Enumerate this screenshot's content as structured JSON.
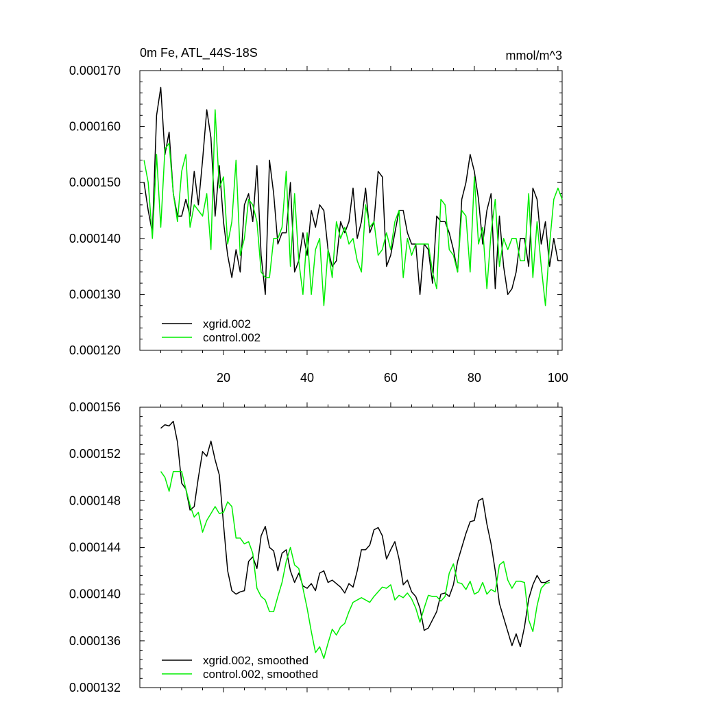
{
  "chart_data": [
    {
      "type": "line",
      "title": "0m Fe, ATL_44S-18S",
      "units": "mmol/m^3",
      "xlim": [
        0,
        101
      ],
      "ylim": [
        0.00012,
        0.00017
      ],
      "xticks": [
        20,
        40,
        60,
        80,
        100
      ],
      "xtick_labels": [
        "20",
        "40",
        "60",
        "80",
        "100"
      ],
      "yticks": [
        0.00012,
        0.00013,
        0.00014,
        0.00015,
        0.00016,
        0.00017
      ],
      "ytick_labels": [
        "0.000120",
        "0.000130",
        "0.000140",
        "0.000150",
        "0.000160",
        "0.000170"
      ],
      "legend_position": "bottom-left",
      "series": [
        {
          "name": "xgrid.002",
          "color": "#000000",
          "x": [
            1,
            2,
            3,
            4,
            5,
            6,
            7,
            8,
            9,
            10,
            11,
            12,
            13,
            14,
            15,
            16,
            17,
            18,
            19,
            20,
            21,
            22,
            23,
            24,
            25,
            26,
            27,
            28,
            29,
            30,
            31,
            32,
            33,
            34,
            35,
            36,
            37,
            38,
            39,
            40,
            41,
            42,
            43,
            44,
            45,
            46,
            47,
            48,
            49,
            50,
            51,
            52,
            53,
            54,
            55,
            56,
            57,
            58,
            59,
            60,
            61,
            62,
            63,
            64,
            65,
            66,
            67,
            68,
            69,
            70,
            71,
            72,
            73,
            74,
            75,
            76,
            77,
            78,
            79,
            80,
            81,
            82,
            83,
            84,
            85,
            86,
            87,
            88,
            89,
            90,
            91,
            92,
            93,
            94,
            95,
            96,
            97,
            98,
            99,
            100,
            101
          ],
          "values": [
            0.00015,
            0.000145,
            0.000141,
            0.000162,
            0.000167,
            0.000155,
            0.000159,
            0.000148,
            0.000144,
            0.000144,
            0.000147,
            0.000144,
            0.000152,
            0.000146,
            0.000154,
            0.000163,
            0.000158,
            0.000144,
            0.000153,
            0.000143,
            0.000137,
            0.000133,
            0.000138,
            0.000134,
            0.000146,
            0.000148,
            0.000143,
            0.000153,
            0.000137,
            0.00013,
            0.000154,
            0.000148,
            0.000139,
            0.000141,
            0.000141,
            0.00015,
            0.000134,
            0.000136,
            0.000141,
            0.000137,
            0.000145,
            0.000142,
            0.000146,
            0.000145,
            0.000138,
            0.000135,
            0.000136,
            0.000143,
            0.000141,
            0.000143,
            0.000149,
            0.00014,
            0.000143,
            0.000149,
            0.000141,
            0.000143,
            0.000152,
            0.000151,
            0.000135,
            0.000137,
            0.000141,
            0.000145,
            0.000145,
            0.000141,
            0.000139,
            0.000139,
            0.00013,
            0.000139,
            0.000138,
            0.000132,
            0.000144,
            0.000143,
            0.000143,
            0.000141,
            0.000138,
            0.000134,
            0.000147,
            0.00015,
            0.000155,
            0.000152,
            0.000147,
            0.000139,
            0.000145,
            0.000148,
            0.000131,
            0.000144,
            0.000135,
            0.00013,
            0.000131,
            0.000134,
            0.00014,
            0.00014,
            0.000135,
            0.000149,
            0.000147,
            0.000139,
            0.000143,
            0.000135,
            0.00014,
            0.000136,
            0.000136
          ]
        },
        {
          "name": "control.002",
          "color": "#00ee00",
          "x": [
            1,
            2,
            3,
            4,
            5,
            6,
            7,
            8,
            9,
            10,
            11,
            12,
            13,
            14,
            15,
            16,
            17,
            18,
            19,
            20,
            21,
            22,
            23,
            24,
            25,
            26,
            27,
            28,
            29,
            30,
            31,
            32,
            33,
            34,
            35,
            36,
            37,
            38,
            39,
            40,
            41,
            42,
            43,
            44,
            45,
            46,
            47,
            48,
            49,
            50,
            51,
            52,
            53,
            54,
            55,
            56,
            57,
            58,
            59,
            60,
            61,
            62,
            63,
            64,
            65,
            66,
            67,
            68,
            69,
            70,
            71,
            72,
            73,
            74,
            75,
            76,
            77,
            78,
            79,
            80,
            81,
            82,
            83,
            84,
            85,
            86,
            87,
            88,
            89,
            90,
            91,
            92,
            93,
            94,
            95,
            96,
            97,
            98,
            99,
            100,
            101
          ],
          "values": [
            0.000154,
            0.00015,
            0.00014,
            0.000155,
            0.000142,
            0.000156,
            0.000157,
            0.000148,
            0.000143,
            0.000152,
            0.000155,
            0.000142,
            0.000146,
            0.000145,
            0.000144,
            0.000148,
            0.000138,
            0.000163,
            0.000149,
            0.000151,
            0.000139,
            0.000143,
            0.000154,
            0.000137,
            0.00014,
            0.000147,
            0.000146,
            0.000143,
            0.000134,
            0.000133,
            0.000133,
            0.00014,
            0.00014,
            0.000142,
            0.000152,
            0.000135,
            0.000148,
            0.000136,
            0.00013,
            0.000141,
            0.00013,
            0.000138,
            0.00014,
            0.000128,
            0.000138,
            0.000133,
            0.000143,
            0.00014,
            0.000142,
            0.000139,
            0.00014,
            0.000136,
            0.000134,
            0.000146,
            0.000142,
            0.000143,
            0.000137,
            0.000138,
            0.000141,
            0.000138,
            0.000143,
            0.000145,
            0.000133,
            0.00014,
            0.000137,
            0.000139,
            0.000139,
            0.000139,
            0.000139,
            0.000134,
            0.000131,
            0.000147,
            0.000146,
            0.000138,
            0.000137,
            0.000134,
            0.000145,
            0.000144,
            0.000134,
            0.000151,
            0.000139,
            0.000142,
            0.000131,
            0.000141,
            0.000147,
            0.000135,
            0.00014,
            0.000138,
            0.00014,
            0.00014,
            0.000136,
            0.000136,
            0.000148,
            0.000133,
            0.000143,
            0.000135,
            0.000128,
            0.000139,
            0.000147,
            0.000149,
            0.000147
          ]
        }
      ]
    },
    {
      "type": "line",
      "title": "",
      "xlim": [
        0,
        101
      ],
      "ylim": [
        0.000132,
        0.000156
      ],
      "xticks": [
        20,
        40,
        60,
        80,
        100
      ],
      "xtick_labels": [],
      "yticks": [
        0.000132,
        0.000136,
        0.00014,
        0.000144,
        0.000148,
        0.000152,
        0.000156
      ],
      "ytick_labels": [
        "0.000132",
        "0.000136",
        "0.000140",
        "0.000144",
        "0.000148",
        "0.000152",
        "0.000156"
      ],
      "legend_position": "bottom-left",
      "series": [
        {
          "name": "xgrid.002, smoothed",
          "color": "#000000",
          "x": [
            5,
            6,
            7,
            8,
            9,
            10,
            11,
            12,
            13,
            14,
            15,
            16,
            17,
            18,
            19,
            20,
            21,
            22,
            23,
            24,
            25,
            26,
            27,
            28,
            29,
            30,
            31,
            32,
            33,
            34,
            35,
            36,
            37,
            38,
            39,
            40,
            41,
            42,
            43,
            44,
            45,
            46,
            47,
            48,
            49,
            50,
            51,
            52,
            53,
            54,
            55,
            56,
            57,
            58,
            59,
            60,
            61,
            62,
            63,
            64,
            65,
            66,
            67,
            68,
            69,
            70,
            71,
            72,
            73,
            74,
            75,
            76,
            77,
            78,
            79,
            80,
            81,
            82,
            83,
            84,
            85,
            86,
            87,
            88,
            89,
            90,
            91,
            92,
            93,
            94,
            95,
            96,
            97,
            98
          ],
          "values": [
            0.0001542,
            0.0001545,
            0.0001544,
            0.0001548,
            0.000153,
            0.0001495,
            0.000149,
            0.0001472,
            0.0001475,
            0.00015,
            0.0001522,
            0.0001518,
            0.0001531,
            0.0001515,
            0.0001502,
            0.000146,
            0.000142,
            0.0001403,
            0.00014,
            0.0001402,
            0.0001403,
            0.0001428,
            0.0001432,
            0.0001422,
            0.000145,
            0.0001458,
            0.000144,
            0.0001437,
            0.000142,
            0.0001435,
            0.0001438,
            0.000142,
            0.000141,
            0.0001418,
            0.0001407,
            0.0001405,
            0.0001409,
            0.0001403,
            0.0001418,
            0.000142,
            0.000141,
            0.0001412,
            0.0001409,
            0.0001406,
            0.0001401,
            0.0001409,
            0.0001406,
            0.000142,
            0.0001438,
            0.0001438,
            0.0001442,
            0.0001455,
            0.0001457,
            0.000145,
            0.000143,
            0.0001438,
            0.0001445,
            0.000143,
            0.0001408,
            0.0001412,
            0.0001402,
            0.0001398,
            0.0001388,
            0.0001369,
            0.0001371,
            0.0001378,
            0.0001385,
            0.00014,
            0.0001401,
            0.0001398,
            0.0001408,
            0.0001428,
            0.000144,
            0.0001452,
            0.0001462,
            0.0001463,
            0.000148,
            0.0001482,
            0.000146,
            0.0001443,
            0.000142,
            0.0001392,
            0.000138,
            0.0001368,
            0.0001356,
            0.0001366,
            0.0001355,
            0.0001372,
            0.0001396,
            0.0001408,
            0.0001416,
            0.000141,
            0.000141,
            0.0001412
          ]
        },
        {
          "name": "control.002, smoothed",
          "color": "#00ee00",
          "x": [
            5,
            6,
            7,
            8,
            9,
            10,
            11,
            12,
            13,
            14,
            15,
            16,
            17,
            18,
            19,
            20,
            21,
            22,
            23,
            24,
            25,
            26,
            27,
            28,
            29,
            30,
            31,
            32,
            33,
            34,
            35,
            36,
            37,
            38,
            39,
            40,
            41,
            42,
            43,
            44,
            45,
            46,
            47,
            48,
            49,
            50,
            51,
            52,
            53,
            54,
            55,
            56,
            57,
            58,
            59,
            60,
            61,
            62,
            63,
            64,
            65,
            66,
            67,
            68,
            69,
            70,
            71,
            72,
            73,
            74,
            75,
            76,
            77,
            78,
            79,
            80,
            81,
            82,
            83,
            84,
            85,
            86,
            87,
            88,
            89,
            90,
            91,
            92,
            93,
            94,
            95,
            96,
            97,
            98
          ],
          "values": [
            0.0001505,
            0.00015,
            0.0001488,
            0.0001505,
            0.0001505,
            0.0001505,
            0.000149,
            0.0001476,
            0.0001466,
            0.000147,
            0.0001453,
            0.0001463,
            0.0001469,
            0.0001475,
            0.0001469,
            0.000147,
            0.0001479,
            0.0001475,
            0.0001448,
            0.0001448,
            0.0001443,
            0.0001445,
            0.0001435,
            0.0001405,
            0.0001398,
            0.0001395,
            0.0001385,
            0.0001385,
            0.0001398,
            0.000141,
            0.0001428,
            0.000144,
            0.0001425,
            0.0001422,
            0.0001405,
            0.0001388,
            0.0001368,
            0.000135,
            0.0001355,
            0.0001345,
            0.0001358,
            0.000137,
            0.0001365,
            0.0001372,
            0.0001375,
            0.0001385,
            0.0001393,
            0.0001395,
            0.0001397,
            0.0001395,
            0.0001393,
            0.0001398,
            0.0001402,
            0.0001406,
            0.0001405,
            0.0001408,
            0.0001395,
            0.0001399,
            0.0001397,
            0.0001401,
            0.0001396,
            0.0001388,
            0.0001376,
            0.0001388,
            0.0001399,
            0.0001398,
            0.0001398,
            0.0001394,
            0.0001398,
            0.0001418,
            0.0001426,
            0.000141,
            0.0001409,
            0.0001404,
            0.0001411,
            0.00014,
            0.0001402,
            0.000141,
            0.00014,
            0.0001404,
            0.0001402,
            0.0001425,
            0.0001428,
            0.0001412,
            0.0001405,
            0.0001411,
            0.0001411,
            0.000141,
            0.0001378,
            0.0001368,
            0.000139,
            0.0001405,
            0.0001409,
            0.000141
          ]
        }
      ]
    }
  ]
}
